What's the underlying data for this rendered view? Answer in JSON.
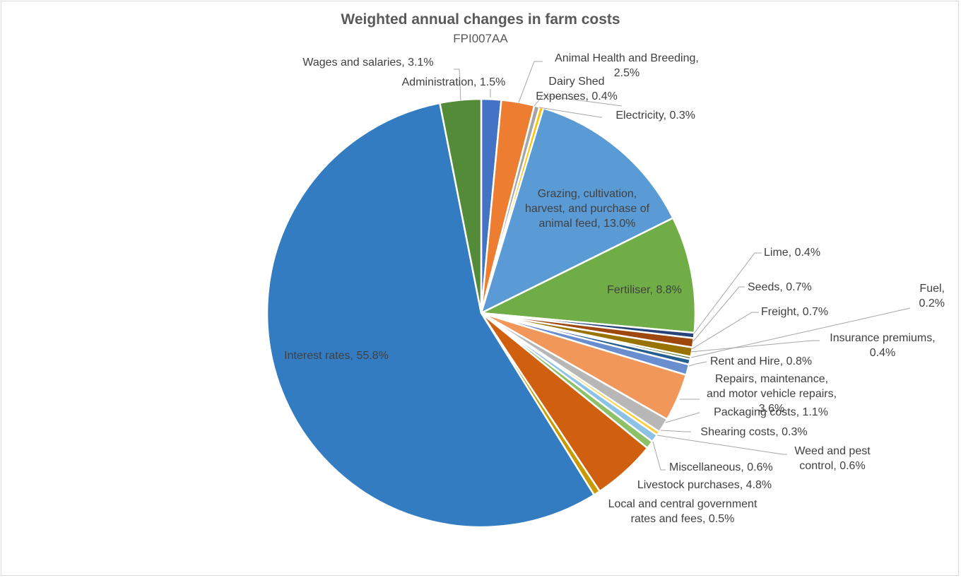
{
  "chart_data": {
    "type": "pie",
    "title": "Weighted annual changes in farm costs",
    "subtitle": "FPI007AA",
    "slices": [
      {
        "name": "Administration",
        "value": 1.5,
        "color": "#4472c4",
        "label": [
          "Administration, 1.5%"
        ]
      },
      {
        "name": "Animal Health and Breeding",
        "value": 2.5,
        "color": "#ed7d31",
        "label": [
          "Animal Health and Breeding,",
          "2.5%"
        ]
      },
      {
        "name": "Dairy Shed Expenses",
        "value": 0.4,
        "color": "#a5a5a5",
        "label": [
          "Dairy Shed",
          "Expenses, 0.4%"
        ]
      },
      {
        "name": "Electricity",
        "value": 0.3,
        "color": "#ffc000",
        "label": [
          "Electricity, 0.3%"
        ]
      },
      {
        "name": "Grazing, cultivation, harvest, and purchase of animal feed",
        "value": 13.0,
        "color": "#5b9bd5",
        "label": [
          "Grazing, cultivation,",
          "harvest, and purchase of",
          "animal feed, 13.0%"
        ]
      },
      {
        "name": "Fertiliser",
        "value": 8.8,
        "color": "#70ad47",
        "label": [
          "Fertiliser, 8.8%"
        ]
      },
      {
        "name": "Lime",
        "value": 0.4,
        "color": "#264478",
        "label": [
          "Lime, 0.4%"
        ]
      },
      {
        "name": "Seeds",
        "value": 0.7,
        "color": "#9e480e",
        "label": [
          "Seeds, 0.7%"
        ]
      },
      {
        "name": "Freight",
        "value": 0.7,
        "color": "#997300",
        "label": [
          "Freight, 0.7%"
        ]
      },
      {
        "name": "Fuel",
        "value": 0.2,
        "color": "#43682b",
        "label": [
          "Fuel,",
          "0.2%"
        ]
      },
      {
        "name": "Insurance premiums",
        "value": 0.4,
        "color": "#255e91",
        "label": [
          "Insurance premiums,",
          "0.4%"
        ]
      },
      {
        "name": "Rent and Hire",
        "value": 0.8,
        "color": "#698ed0",
        "label": [
          "Rent and Hire, 0.8%"
        ]
      },
      {
        "name": "Repairs, maintenance, and motor vehicle repairs",
        "value": 3.6,
        "color": "#f1975a",
        "label": [
          "Repairs, maintenance,",
          "and motor vehicle repairs,",
          "3.6%"
        ]
      },
      {
        "name": "Packaging costs",
        "value": 1.1,
        "color": "#b7b7b7",
        "label": [
          "Packaging costs, 1.1%"
        ]
      },
      {
        "name": "Shearing costs",
        "value": 0.3,
        "color": "#ffcd33",
        "label": [
          "Shearing costs, 0.3%"
        ]
      },
      {
        "name": "Weed and pest control",
        "value": 0.6,
        "color": "#8cc1e8",
        "label": [
          "Weed and pest",
          "control, 0.6%"
        ]
      },
      {
        "name": "Miscellaneous",
        "value": 0.6,
        "color": "#8cc168",
        "label": [
          "Miscellaneous, 0.6%"
        ]
      },
      {
        "name": "Livestock purchases",
        "value": 4.8,
        "color": "#d0600f",
        "label": [
          "Livestock purchases, 4.8%"
        ]
      },
      {
        "name": "Local and central government rates and fees",
        "value": 0.5,
        "color": "#c89a00",
        "label": [
          "Local and central government",
          "rates and fees, 0.5%"
        ]
      },
      {
        "name": "Interest rates",
        "value": 55.8,
        "color": "#337cc1",
        "label": [
          "Interest rates, 55.8%"
        ]
      },
      {
        "name": "Wages and salaries",
        "value": 3.1,
        "color": "#548b38",
        "label": [
          "Wages and salaries, 3.1%"
        ]
      }
    ],
    "legend": "none",
    "start_angle": "12 o'clock",
    "direction": "clockwise"
  }
}
